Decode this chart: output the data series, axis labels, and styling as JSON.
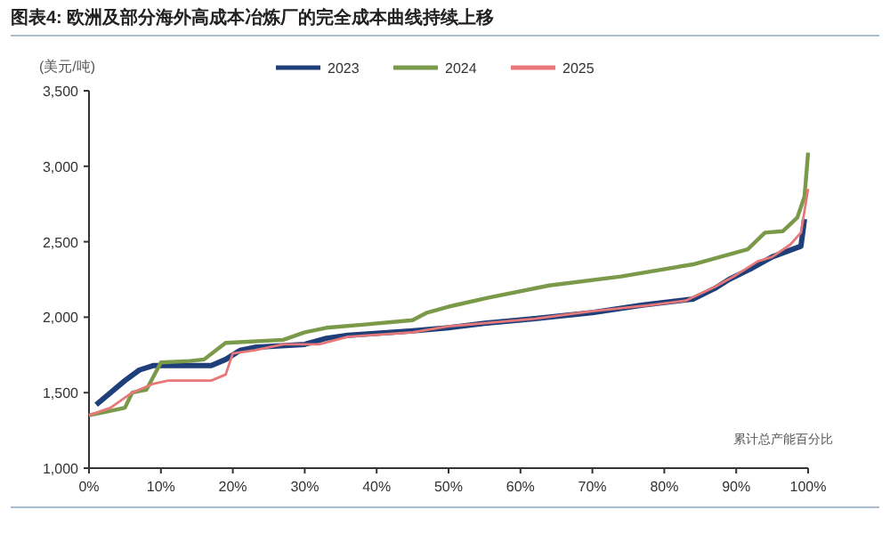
{
  "chart_data": {
    "type": "line",
    "title": "图表4:  欧洲及部分海外高成本冶炼厂的完全成本曲线持续上移",
    "ylabel": "(美元/吨)",
    "xlabel": "累计总产能百分比",
    "grid": false,
    "legend": "top",
    "line_style": "solid",
    "marker": "none",
    "xlim": [
      0,
      100
    ],
    "xticks": [
      {
        "value": 0,
        "label": "0%"
      },
      {
        "value": 10,
        "label": "10%"
      },
      {
        "value": 20,
        "label": "20%"
      },
      {
        "value": 30,
        "label": "30%"
      },
      {
        "value": 40,
        "label": "40%"
      },
      {
        "value": 50,
        "label": "50%"
      },
      {
        "value": 60,
        "label": "60%"
      },
      {
        "value": 70,
        "label": "70%"
      },
      {
        "value": 80,
        "label": "80%"
      },
      {
        "value": 90,
        "label": "90%"
      },
      {
        "value": 100,
        "label": "100%"
      }
    ],
    "ylim": [
      1000,
      3500
    ],
    "yticks": [
      {
        "value": 1000,
        "label": "1,000"
      },
      {
        "value": 1500,
        "label": "1,500"
      },
      {
        "value": 2000,
        "label": "2,000"
      },
      {
        "value": 2500,
        "label": "2,500"
      },
      {
        "value": 3000,
        "label": "3,000"
      },
      {
        "value": 3500,
        "label": "3,500"
      }
    ],
    "series": [
      {
        "name": "2023",
        "color": "#1f3f7a",
        "x": [
          1,
          5,
          7,
          9,
          17,
          19,
          21,
          23,
          30,
          33,
          36,
          45,
          50,
          55,
          62,
          70,
          77,
          84,
          87,
          89,
          92,
          95,
          99,
          99.5
        ],
        "values": [
          1420,
          1580,
          1650,
          1680,
          1680,
          1720,
          1780,
          1800,
          1820,
          1860,
          1880,
          1910,
          1930,
          1960,
          1990,
          2030,
          2080,
          2120,
          2190,
          2250,
          2320,
          2400,
          2470,
          2650
        ]
      },
      {
        "name": "2024",
        "color": "#7a9a4a",
        "x": [
          0,
          3,
          5,
          6,
          8,
          10,
          14,
          16,
          19,
          27,
          30,
          33,
          38,
          45,
          47,
          50,
          55.6,
          64,
          74,
          84,
          91.6,
          94,
          96.5,
          98.5,
          99.5,
          100
        ],
        "values": [
          1350,
          1380,
          1400,
          1500,
          1520,
          1700,
          1710,
          1720,
          1830,
          1850,
          1900,
          1930,
          1950,
          1980,
          2030,
          2070,
          2130,
          2210,
          2270,
          2350,
          2450,
          2560,
          2570,
          2660,
          2800,
          3090
        ]
      },
      {
        "name": "2025",
        "color": "#e87878",
        "x": [
          0,
          3,
          6,
          9,
          11,
          17,
          19,
          20,
          23,
          27,
          32,
          36,
          45,
          50,
          55,
          62,
          70,
          78,
          83,
          87,
          90,
          93,
          95,
          97.5,
          99,
          100
        ],
        "values": [
          1350,
          1400,
          1500,
          1560,
          1580,
          1580,
          1620,
          1760,
          1780,
          1820,
          1820,
          1870,
          1900,
          1940,
          1960,
          1990,
          2040,
          2080,
          2110,
          2200,
          2280,
          2370,
          2400,
          2480,
          2560,
          2850
        ]
      }
    ]
  }
}
